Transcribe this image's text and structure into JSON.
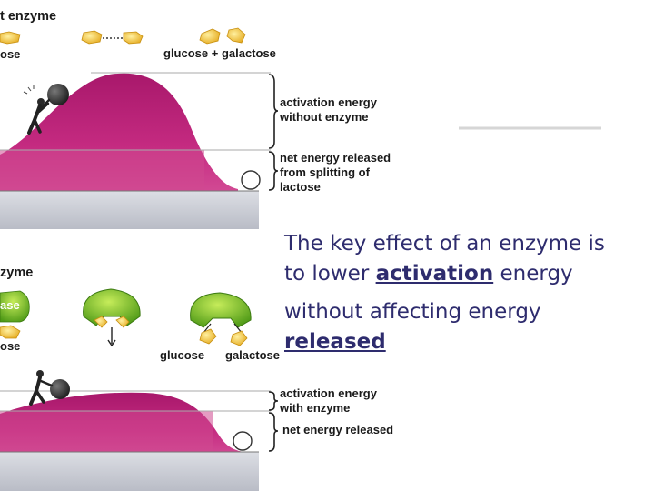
{
  "top_panel": {
    "title": "t enzyme",
    "left_label": "ose",
    "right_label": "glucose + galactose",
    "activation_label": [
      "activation energy",
      "without enzyme"
    ],
    "released_label": [
      "net energy released",
      "from splitting of",
      "lactose"
    ]
  },
  "bottom_panel": {
    "title": "zyme",
    "left_label_1": "ase",
    "left_label_2": "ose",
    "product_label_1": "glucose",
    "product_label_2": "galactose",
    "activation_label": [
      "activation energy",
      "with enzyme"
    ],
    "released_label": "net energy released"
  },
  "caption": {
    "line1": "The key effect of an enzyme is",
    "line2_pre": "to lower ",
    "line2_em": "activation",
    "line2_post": " energy",
    "line3": "without affecting energy",
    "line4_em": "released"
  },
  "colors": {
    "hill": "#c21f7c",
    "ground": "#c8cbd3",
    "sugar": "#f2c230",
    "enzyme": "#7bc22a",
    "caption_text": "#2e2c6e"
  }
}
